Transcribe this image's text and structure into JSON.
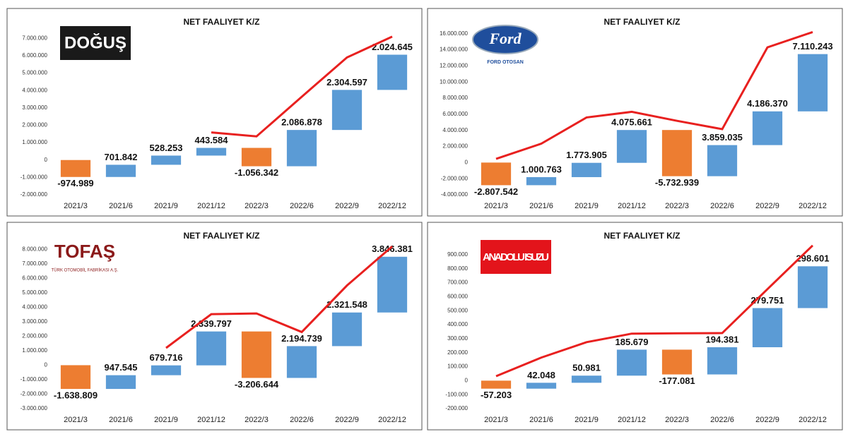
{
  "chart_data": [
    {
      "type": "waterfall",
      "title": "NET FAALIYET K/Z",
      "logo": {
        "text": "DOĞUŞ",
        "background": "#1a1a1a",
        "color": "#ffffff"
      },
      "categories": [
        "2021/3",
        "2021/6",
        "2021/9",
        "2021/12",
        "2022/3",
        "2022/6",
        "2022/9",
        "2022/12"
      ],
      "values": [
        -974989,
        701842,
        528253,
        443584,
        -1056342,
        2086878,
        2304597,
        2024645
      ],
      "value_labels": [
        "-974.989",
        "701.842",
        "528.253",
        "443.584",
        "-1.056.342",
        "2.086.878",
        "2.304.597",
        "2.024.645"
      ],
      "line_values": [
        null,
        null,
        null,
        1590000,
        1360000,
        3640000,
        5900000,
        7100000
      ],
      "increase_color": "#5b9bd5",
      "decrease_color": "#ed7d31",
      "line_color": "#e8201f",
      "ylim": [
        -2000000,
        7500000
      ],
      "yticks": [
        {
          "value": -2000000,
          "label": "-2.000.000"
        },
        {
          "value": -1000000,
          "label": "-1.000.000"
        },
        0,
        {
          "value": 1000000,
          "label": "1.000.000"
        },
        {
          "value": 2000000,
          "label": "2.000.000"
        },
        {
          "value": 3000000,
          "label": "3.000.000"
        },
        {
          "value": 4000000,
          "label": "4.000.000"
        },
        {
          "value": 5000000,
          "label": "5.000.000"
        },
        {
          "value": 6000000,
          "label": "6.000.000"
        },
        {
          "value": 7000000,
          "label": "7.000.000"
        }
      ]
    },
    {
      "type": "waterfall",
      "title": "NET FAALIYET K/Z",
      "logo": {
        "text": "Ford",
        "subtitle": "FORD OTOSAN",
        "background": "#1f4e9c",
        "color": "#ffffff"
      },
      "categories": [
        "2021/3",
        "2021/6",
        "2021/9",
        "2021/12",
        "2022/3",
        "2022/6",
        "2022/9",
        "2022/12"
      ],
      "values": [
        -2807542,
        1000763,
        1773905,
        4075661,
        -5732939,
        3859035,
        4186370,
        7110243
      ],
      "value_labels": [
        "-2.807.542",
        "1.000.763",
        "1.773.905",
        "4.075.661",
        "-5.732.939",
        "3.859.035",
        "4.186.370",
        "7.110.243"
      ],
      "line_values": [
        460000,
        2350000,
        5600000,
        6300000,
        5180000,
        4150000,
        14300000,
        16200000
      ],
      "increase_color": "#5b9bd5",
      "decrease_color": "#ed7d31",
      "line_color": "#e8201f",
      "ylim": [
        -4000000,
        16500000
      ],
      "yticks": [
        {
          "value": -4000000,
          "label": "-4.000.000"
        },
        {
          "value": -2000000,
          "label": "-2.000.000"
        },
        0,
        {
          "value": 2000000,
          "label": "2.000.000"
        },
        {
          "value": 4000000,
          "label": "4.000.000"
        },
        {
          "value": 6000000,
          "label": "6.000.000"
        },
        {
          "value": 8000000,
          "label": "8.000.000"
        },
        {
          "value": 10000000,
          "label": "10.000.000"
        },
        {
          "value": 12000000,
          "label": "12.000.000"
        },
        {
          "value": 14000000,
          "label": "14.000.000"
        },
        {
          "value": 16000000,
          "label": "16.000.000"
        }
      ]
    },
    {
      "type": "waterfall",
      "title": "NET FAALIYET K/Z",
      "logo": {
        "text": "TOFAŞ",
        "subtitle": "TÜRK OTOMOBİL FABRİKASI A.Ş.",
        "background": "#ffffff",
        "color": "#8b1a1a"
      },
      "categories": [
        "2021/3",
        "2021/6",
        "2021/9",
        "2021/12",
        "2022/3",
        "2022/6",
        "2022/9",
        "2022/12"
      ],
      "values": [
        -1638809,
        947545,
        679716,
        2339797,
        -3206644,
        2194739,
        2321548,
        3846381
      ],
      "value_labels": [
        "-1.638.809",
        "947.545",
        "679.716",
        "2.339.797",
        "-3.206.644",
        "2.194.739",
        "2.321.548",
        "3.846.381"
      ],
      "line_values": [
        null,
        null,
        1190000,
        3520000,
        3570000,
        2290000,
        5500000,
        8200000
      ],
      "increase_color": "#5b9bd5",
      "decrease_color": "#ed7d31",
      "line_color": "#e8201f",
      "ylim": [
        -3000000,
        8400000
      ],
      "yticks": [
        {
          "value": -3000000,
          "label": "-3.000.000"
        },
        {
          "value": -2000000,
          "label": "-2.000.000"
        },
        {
          "value": -1000000,
          "label": "-1.000.000"
        },
        0,
        {
          "value": 1000000,
          "label": "1.000.000"
        },
        {
          "value": 2000000,
          "label": "2.000.000"
        },
        {
          "value": 3000000,
          "label": "3.000.000"
        },
        {
          "value": 4000000,
          "label": "4.000.000"
        },
        {
          "value": 5000000,
          "label": "5.000.000"
        },
        {
          "value": 6000000,
          "label": "6.000.000"
        },
        {
          "value": 7000000,
          "label": "7.000.000"
        },
        {
          "value": 8000000,
          "label": "8.000.000"
        }
      ]
    },
    {
      "type": "waterfall",
      "title": "NET FAALIYET K/Z",
      "logo": {
        "text": "ANADOLU ISUZU",
        "background": "#e3141b",
        "color": "#ffffff"
      },
      "categories": [
        "2021/3",
        "2021/6",
        "2021/9",
        "2021/12",
        "2022/3",
        "2022/6",
        "2022/9",
        "2022/12"
      ],
      "values": [
        -57203,
        42048,
        50981,
        185679,
        -177081,
        194381,
        279751,
        298601
      ],
      "value_labels": [
        "-57.203",
        "42.048",
        "50.981",
        "185.679",
        "-177.081",
        "194.381",
        "279.751",
        "298.601"
      ],
      "line_values": [
        32000,
        165000,
        275000,
        336000,
        338000,
        340000,
        654000,
        966000
      ],
      "increase_color": "#5b9bd5",
      "decrease_color": "#ed7d31",
      "line_color": "#e8201f",
      "ylim": [
        -200000,
        980000
      ],
      "yticks": [
        {
          "value": -200000,
          "label": "-200.000"
        },
        {
          "value": -100000,
          "label": "-100.000"
        },
        0,
        {
          "value": 100000,
          "label": "100.000"
        },
        {
          "value": 200000,
          "label": "200.000"
        },
        {
          "value": 300000,
          "label": "300.000"
        },
        {
          "value": 400000,
          "label": "400.000"
        },
        {
          "value": 500000,
          "label": "500.000"
        },
        {
          "value": 600000,
          "label": "600.000"
        },
        {
          "value": 700000,
          "label": "700.000"
        },
        {
          "value": 800000,
          "label": "800.000"
        },
        {
          "value": 900000,
          "label": "900.000"
        }
      ]
    }
  ]
}
